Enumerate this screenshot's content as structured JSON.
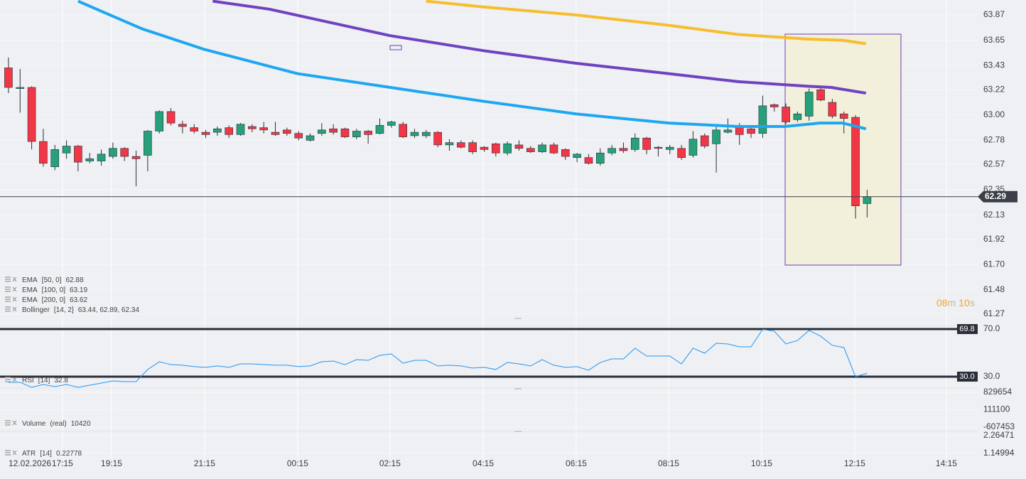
{
  "chart_data": [
    {
      "type": "candlestick",
      "x_date": "12.02.2026",
      "xlim": [
        -0.73,
        83.53
      ],
      "xticks": [
        {
          "value": 4.65,
          "label": "17:15"
        },
        {
          "value": 8.88,
          "label": "19:15"
        },
        {
          "value": 16.9,
          "label": "21:15"
        },
        {
          "value": 24.92,
          "label": "00:15"
        },
        {
          "value": 32.88,
          "label": "02:15"
        },
        {
          "value": 40.91,
          "label": "04:15"
        },
        {
          "value": 48.93,
          "label": "06:15"
        },
        {
          "value": 56.89,
          "label": "08:15"
        },
        {
          "value": 64.91,
          "label": "10:15"
        },
        {
          "value": 72.93,
          "label": "12:15"
        },
        {
          "value": 80.83,
          "label": "14:15"
        }
      ],
      "ylim": [
        61.17,
        64.0
      ],
      "yticks": [
        63.87,
        63.65,
        63.43,
        63.22,
        {
          "value": 63.0,
          "label": "63.00"
        },
        62.78,
        62.57,
        62.35,
        62.13,
        61.92,
        {
          "value": 61.7,
          "label": "61.70"
        },
        61.48,
        61.27
      ],
      "grid": true,
      "up_color": "#26a17a",
      "down_color": "#f23645",
      "open": [
        63.41,
        63.23,
        63.24,
        62.77,
        62.55,
        62.67,
        62.73,
        62.6,
        62.6,
        62.64,
        62.71,
        62.64,
        62.65,
        62.86,
        63.03,
        62.92,
        62.89,
        62.85,
        62.85,
        62.89,
        62.83,
        62.9,
        62.89,
        62.85,
        62.87,
        62.84,
        62.78,
        62.84,
        62.88,
        62.88,
        62.81,
        62.86,
        62.84,
        62.91,
        62.92,
        62.82,
        62.82,
        62.85,
        62.74,
        62.76,
        62.76,
        62.72,
        62.75,
        62.67,
        62.74,
        62.71,
        62.68,
        62.74,
        62.7,
        62.63,
        62.63,
        62.58,
        62.67,
        62.71,
        62.7,
        62.8,
        62.72,
        62.7,
        62.71,
        62.65,
        62.82,
        62.75,
        62.85,
        62.9,
        62.88,
        62.84,
        63.09,
        63.07,
        62.96,
        62.99,
        63.22,
        63.11,
        63.01,
        62.98,
        62.23
      ],
      "high": [
        63.5,
        63.4,
        63.25,
        62.88,
        62.74,
        62.78,
        62.74,
        62.67,
        62.7,
        62.76,
        62.72,
        62.69,
        62.87,
        63.04,
        63.06,
        62.95,
        62.92,
        62.87,
        62.9,
        62.91,
        62.93,
        62.92,
        62.94,
        62.94,
        62.89,
        62.86,
        62.84,
        62.93,
        62.92,
        62.89,
        62.88,
        62.87,
        62.97,
        62.95,
        62.94,
        62.88,
        62.87,
        62.86,
        62.79,
        62.78,
        62.78,
        62.73,
        62.76,
        62.77,
        62.78,
        62.73,
        62.76,
        62.76,
        62.71,
        62.67,
        62.66,
        62.71,
        62.74,
        62.76,
        62.84,
        62.81,
        62.73,
        62.74,
        62.74,
        62.86,
        62.84,
        62.9,
        62.97,
        62.93,
        62.9,
        63.17,
        63.1,
        63.1,
        63.03,
        63.23,
        63.24,
        63.14,
        63.03,
        63.0,
        62.35
      ],
      "low": [
        63.19,
        63.02,
        62.7,
        62.55,
        62.52,
        62.62,
        62.51,
        62.58,
        62.56,
        62.62,
        62.6,
        62.38,
        62.51,
        62.84,
        62.91,
        62.84,
        62.84,
        62.8,
        62.82,
        62.8,
        62.82,
        62.85,
        62.84,
        62.82,
        62.82,
        62.78,
        62.77,
        62.82,
        62.83,
        62.8,
        62.79,
        62.75,
        62.83,
        62.89,
        62.8,
        62.8,
        62.8,
        62.72,
        62.69,
        62.71,
        62.66,
        62.68,
        62.64,
        62.65,
        62.69,
        62.67,
        62.67,
        62.66,
        62.61,
        62.59,
        62.57,
        62.56,
        62.65,
        62.67,
        62.68,
        62.66,
        62.64,
        62.66,
        62.61,
        62.63,
        62.71,
        62.5,
        62.84,
        62.74,
        62.8,
        62.8,
        63.03,
        62.92,
        62.94,
        62.95,
        63.12,
        62.97,
        62.84,
        62.1,
        62.11
      ],
      "close": [
        63.24,
        63.24,
        62.77,
        62.58,
        62.7,
        62.73,
        62.59,
        62.62,
        62.66,
        62.71,
        62.64,
        62.62,
        62.86,
        63.03,
        62.93,
        62.9,
        62.86,
        62.83,
        62.88,
        62.83,
        62.92,
        62.88,
        62.87,
        62.83,
        62.84,
        62.8,
        62.82,
        62.87,
        62.85,
        62.81,
        62.86,
        62.83,
        62.91,
        62.94,
        62.81,
        62.85,
        62.85,
        62.74,
        62.76,
        62.72,
        62.68,
        62.7,
        62.67,
        62.75,
        62.71,
        62.68,
        62.74,
        62.67,
        62.64,
        62.66,
        62.58,
        62.67,
        62.71,
        62.69,
        62.8,
        62.7,
        62.71,
        62.72,
        62.63,
        62.79,
        62.73,
        62.87,
        62.87,
        62.83,
        62.84,
        63.08,
        63.07,
        62.94,
        63.01,
        63.2,
        63.13,
        62.99,
        62.97,
        62.21,
        62.29
      ],
      "last_price": 62.29,
      "series": [
        {
          "name": "EMA",
          "params": "[50, 0]",
          "color": "#1ea7f0",
          "x": [
            6.0,
            11.5,
            16.9,
            24.9,
            32.9,
            40.9,
            48.9,
            56.9,
            62.9,
            66.9,
            69.9,
            71.9,
            73.9
          ],
          "values": [
            63.99,
            63.75,
            63.57,
            63.36,
            63.24,
            63.12,
            63.01,
            62.93,
            62.9,
            62.9,
            62.93,
            62.93,
            62.88
          ]
        },
        {
          "name": "EMA",
          "params": "[100, 0]",
          "color": "#6f42c1",
          "x": [
            17.6,
            22.5,
            32.9,
            40.9,
            48.9,
            56.9,
            62.9,
            68.9,
            70.9,
            73.9
          ],
          "values": [
            63.99,
            63.92,
            63.69,
            63.56,
            63.45,
            63.36,
            63.29,
            63.25,
            63.24,
            63.19
          ]
        },
        {
          "name": "EMA",
          "params": "[200, 0]",
          "color": "#f7bd2c",
          "x": [
            36.0,
            40.9,
            48.9,
            56.9,
            62.9,
            68.9,
            71.9,
            73.9
          ],
          "values": [
            63.99,
            63.94,
            63.87,
            63.78,
            63.7,
            63.66,
            63.65,
            63.62
          ]
        }
      ],
      "bollinger": {
        "name": "Bollinger",
        "params": "[14, 2]",
        "reading": "63.44,  62.89,  62.34"
      },
      "countdown": {
        "minutes": "08",
        "minutes_unit": "m",
        "seconds": "10",
        "seconds_unit": "s"
      }
    },
    {
      "type": "line",
      "name": "RSI",
      "params": "[14]",
      "reading": 32.8,
      "color": "#2196f3",
      "ylim": [
        21,
        79
      ],
      "yticks": [
        {
          "value": 70,
          "label": "70.0"
        },
        {
          "value": 30,
          "label": "30.0"
        }
      ],
      "level_badges": [
        69.8,
        {
          "value": 30,
          "label": "30.0"
        }
      ],
      "values": [
        25.2,
        25.2,
        21.0,
        23.4,
        21.6,
        23.4,
        21.0,
        22.8,
        24.6,
        26.4,
        25.8,
        25.8,
        36.0,
        42.5,
        40.1,
        39.6,
        38.4,
        37.8,
        39.0,
        37.8,
        40.7,
        40.7,
        40.1,
        39.6,
        39.6,
        38.4,
        39.0,
        42.5,
        43.1,
        40.1,
        44.3,
        43.7,
        47.9,
        49.1,
        41.3,
        43.7,
        43.7,
        39.0,
        39.6,
        39.0,
        37.2,
        37.8,
        36.0,
        41.9,
        40.7,
        39.0,
        44.3,
        39.6,
        37.8,
        38.4,
        35.4,
        41.9,
        44.9,
        44.9,
        53.9,
        47.3,
        47.3,
        47.3,
        40.7,
        53.9,
        49.7,
        58.1,
        57.5,
        55.1,
        55.1,
        69.8,
        68.2,
        57.5,
        60.4,
        68.9,
        64.0,
        56.3,
        54.5,
        30.0,
        32.8
      ]
    },
    {
      "type": "indicator",
      "name": "Volume",
      "params": "(real)",
      "reading": 10420,
      "ylim": [
        -783427,
        1005628
      ],
      "yticks": [
        829654,
        111100,
        -607453
      ]
    },
    {
      "type": "indicator",
      "name": "ATR",
      "params": "[14]",
      "reading": 0.22778,
      "ylim": [
        0.8155,
        2.5323
      ],
      "yticks": [
        2.26471,
        1.14994
      ]
    }
  ]
}
